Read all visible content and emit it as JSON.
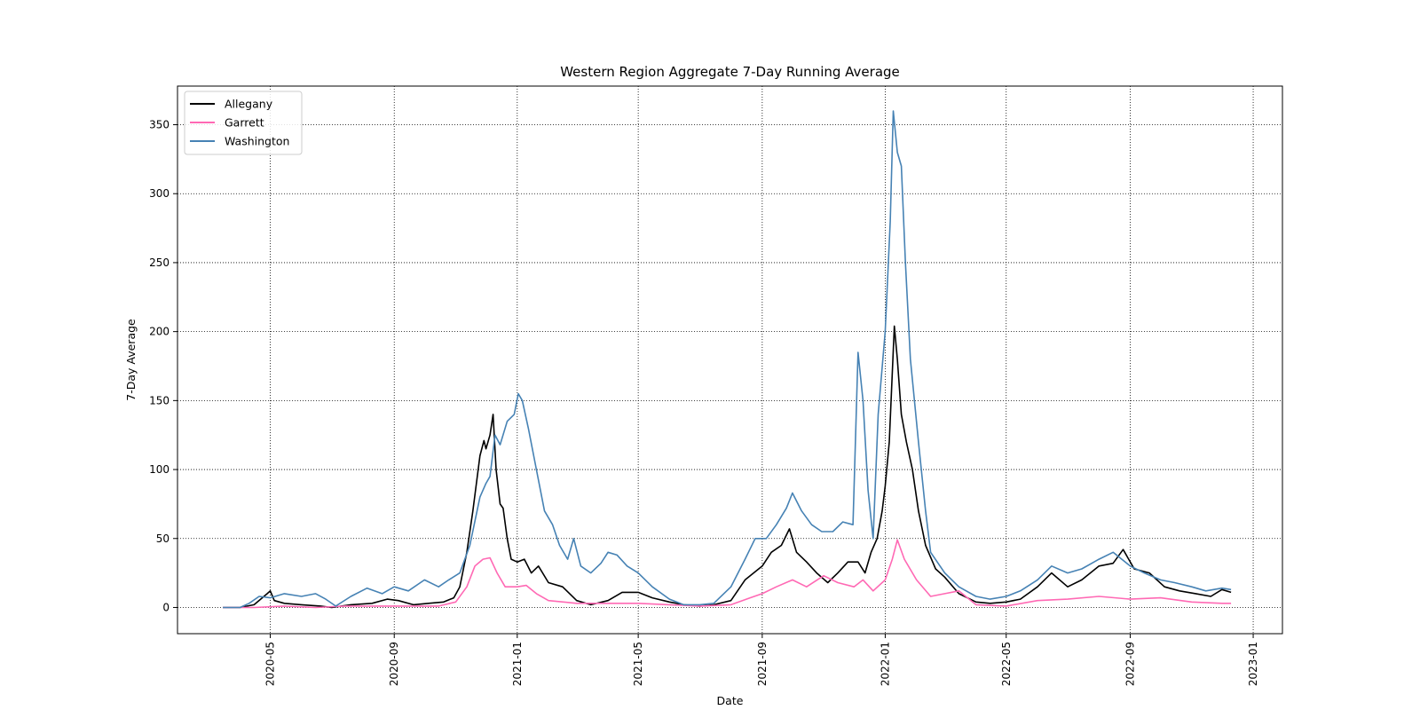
{
  "chart_data": {
    "type": "line",
    "title": "Western Region Aggregate 7-Day Running Average",
    "xlabel": "Date",
    "ylabel": "7-Day Average",
    "xlim": [
      "2020-01-30",
      "2023-01-30"
    ],
    "ylim": [
      -19,
      378
    ],
    "x_ticks": [
      "2020-05",
      "2020-09",
      "2021-01",
      "2021-05",
      "2021-09",
      "2022-01",
      "2022-05",
      "2022-09",
      "2023-01"
    ],
    "y_ticks": [
      0,
      50,
      100,
      150,
      200,
      250,
      300,
      350
    ],
    "grid": true,
    "grid_style": "dotted",
    "legend_position": "top-left",
    "series": [
      {
        "name": "Allegany",
        "color": "#000000",
        "points": [
          [
            "2020-03-15",
            0
          ],
          [
            "2020-04-01",
            0
          ],
          [
            "2020-04-15",
            2
          ],
          [
            "2020-04-28",
            10
          ],
          [
            "2020-05-01",
            12
          ],
          [
            "2020-05-05",
            5
          ],
          [
            "2020-05-15",
            3
          ],
          [
            "2020-06-01",
            2
          ],
          [
            "2020-06-20",
            1
          ],
          [
            "2020-07-01",
            0
          ],
          [
            "2020-07-20",
            2
          ],
          [
            "2020-08-10",
            3
          ],
          [
            "2020-08-25",
            6
          ],
          [
            "2020-09-05",
            5
          ],
          [
            "2020-09-20",
            2
          ],
          [
            "2020-10-05",
            3
          ],
          [
            "2020-10-20",
            4
          ],
          [
            "2020-10-30",
            7
          ],
          [
            "2020-11-05",
            15
          ],
          [
            "2020-11-12",
            40
          ],
          [
            "2020-11-18",
            70
          ],
          [
            "2020-11-25",
            110
          ],
          [
            "2020-11-29",
            121
          ],
          [
            "2020-12-01",
            115
          ],
          [
            "2020-12-05",
            125
          ],
          [
            "2020-12-08",
            140
          ],
          [
            "2020-12-11",
            100
          ],
          [
            "2020-12-15",
            75
          ],
          [
            "2020-12-18",
            72
          ],
          [
            "2020-12-22",
            50
          ],
          [
            "2020-12-26",
            35
          ],
          [
            "2021-01-01",
            33
          ],
          [
            "2021-01-08",
            35
          ],
          [
            "2021-01-15",
            25
          ],
          [
            "2021-01-22",
            30
          ],
          [
            "2021-02-01",
            18
          ],
          [
            "2021-02-15",
            15
          ],
          [
            "2021-03-01",
            5
          ],
          [
            "2021-03-15",
            2
          ],
          [
            "2021-04-01",
            5
          ],
          [
            "2021-04-15",
            11
          ],
          [
            "2021-05-01",
            11
          ],
          [
            "2021-05-15",
            7
          ],
          [
            "2021-06-01",
            4
          ],
          [
            "2021-06-15",
            2
          ],
          [
            "2021-07-01",
            1
          ],
          [
            "2021-07-15",
            2
          ],
          [
            "2021-08-01",
            5
          ],
          [
            "2021-08-15",
            20
          ],
          [
            "2021-09-01",
            30
          ],
          [
            "2021-09-10",
            40
          ],
          [
            "2021-09-20",
            45
          ],
          [
            "2021-09-28",
            57
          ],
          [
            "2021-10-05",
            40
          ],
          [
            "2021-10-15",
            33
          ],
          [
            "2021-10-25",
            25
          ],
          [
            "2021-11-05",
            18
          ],
          [
            "2021-11-15",
            25
          ],
          [
            "2021-11-25",
            33
          ],
          [
            "2021-12-05",
            33
          ],
          [
            "2021-12-12",
            25
          ],
          [
            "2021-12-18",
            40
          ],
          [
            "2021-12-24",
            50
          ],
          [
            "2021-12-29",
            70
          ],
          [
            "2022-01-01",
            88
          ],
          [
            "2022-01-05",
            120
          ],
          [
            "2022-01-10",
            204
          ],
          [
            "2022-01-13",
            180
          ],
          [
            "2022-01-17",
            140
          ],
          [
            "2022-01-22",
            120
          ],
          [
            "2022-01-28",
            100
          ],
          [
            "2022-02-03",
            70
          ],
          [
            "2022-02-10",
            45
          ],
          [
            "2022-02-20",
            28
          ],
          [
            "2022-03-01",
            22
          ],
          [
            "2022-03-15",
            10
          ],
          [
            "2022-04-01",
            4
          ],
          [
            "2022-04-15",
            3
          ],
          [
            "2022-05-01",
            4
          ],
          [
            "2022-05-15",
            6
          ],
          [
            "2022-06-01",
            15
          ],
          [
            "2022-06-15",
            25
          ],
          [
            "2022-07-01",
            15
          ],
          [
            "2022-07-15",
            20
          ],
          [
            "2022-08-01",
            30
          ],
          [
            "2022-08-15",
            32
          ],
          [
            "2022-08-25",
            42
          ],
          [
            "2022-09-05",
            28
          ],
          [
            "2022-09-20",
            25
          ],
          [
            "2022-10-05",
            15
          ],
          [
            "2022-10-20",
            12
          ],
          [
            "2022-11-05",
            10
          ],
          [
            "2022-11-20",
            8
          ],
          [
            "2022-12-01",
            13
          ],
          [
            "2022-12-10",
            11
          ]
        ]
      },
      {
        "name": "Garrett",
        "color": "#ff69b4",
        "points": [
          [
            "2020-03-15",
            0
          ],
          [
            "2020-04-15",
            0
          ],
          [
            "2020-05-15",
            1
          ],
          [
            "2020-06-15",
            0
          ],
          [
            "2020-07-15",
            1
          ],
          [
            "2020-08-15",
            1
          ],
          [
            "2020-09-15",
            1
          ],
          [
            "2020-10-15",
            1
          ],
          [
            "2020-11-01",
            4
          ],
          [
            "2020-11-12",
            15
          ],
          [
            "2020-11-20",
            30
          ],
          [
            "2020-11-28",
            35
          ],
          [
            "2020-12-05",
            36
          ],
          [
            "2020-12-12",
            25
          ],
          [
            "2020-12-20",
            15
          ],
          [
            "2021-01-01",
            15
          ],
          [
            "2021-01-10",
            16
          ],
          [
            "2021-01-20",
            10
          ],
          [
            "2021-02-01",
            5
          ],
          [
            "2021-03-01",
            3
          ],
          [
            "2021-04-01",
            3
          ],
          [
            "2021-05-01",
            3
          ],
          [
            "2021-06-01",
            2
          ],
          [
            "2021-07-01",
            1
          ],
          [
            "2021-08-01",
            2
          ],
          [
            "2021-08-20",
            7
          ],
          [
            "2021-09-01",
            10
          ],
          [
            "2021-09-15",
            15
          ],
          [
            "2021-10-01",
            20
          ],
          [
            "2021-10-15",
            15
          ],
          [
            "2021-11-01",
            23
          ],
          [
            "2021-11-15",
            18
          ],
          [
            "2021-12-01",
            15
          ],
          [
            "2021-12-10",
            20
          ],
          [
            "2021-12-20",
            12
          ],
          [
            "2022-01-01",
            20
          ],
          [
            "2022-01-08",
            35
          ],
          [
            "2022-01-13",
            49
          ],
          [
            "2022-01-20",
            35
          ],
          [
            "2022-02-01",
            20
          ],
          [
            "2022-02-15",
            8
          ],
          [
            "2022-03-01",
            10
          ],
          [
            "2022-03-15",
            12
          ],
          [
            "2022-04-01",
            2
          ],
          [
            "2022-05-01",
            1
          ],
          [
            "2022-06-01",
            5
          ],
          [
            "2022-07-01",
            6
          ],
          [
            "2022-08-01",
            8
          ],
          [
            "2022-09-01",
            6
          ],
          [
            "2022-10-01",
            7
          ],
          [
            "2022-11-01",
            4
          ],
          [
            "2022-12-01",
            3
          ],
          [
            "2022-12-10",
            3
          ]
        ]
      },
      {
        "name": "Washington",
        "color": "#4682b4",
        "points": [
          [
            "2020-03-15",
            0
          ],
          [
            "2020-04-01",
            0
          ],
          [
            "2020-04-10",
            3
          ],
          [
            "2020-04-20",
            8
          ],
          [
            "2020-05-01",
            7
          ],
          [
            "2020-05-15",
            10
          ],
          [
            "2020-06-01",
            8
          ],
          [
            "2020-06-15",
            10
          ],
          [
            "2020-06-25",
            6
          ],
          [
            "2020-07-05",
            1
          ],
          [
            "2020-07-20",
            8
          ],
          [
            "2020-08-05",
            14
          ],
          [
            "2020-08-20",
            10
          ],
          [
            "2020-09-01",
            15
          ],
          [
            "2020-09-15",
            12
          ],
          [
            "2020-10-01",
            20
          ],
          [
            "2020-10-15",
            15
          ],
          [
            "2020-10-25",
            20
          ],
          [
            "2020-11-05",
            25
          ],
          [
            "2020-11-15",
            45
          ],
          [
            "2020-11-25",
            80
          ],
          [
            "2020-12-01",
            90
          ],
          [
            "2020-12-05",
            95
          ],
          [
            "2020-12-10",
            125
          ],
          [
            "2020-12-15",
            118
          ],
          [
            "2020-12-22",
            135
          ],
          [
            "2020-12-29",
            140
          ],
          [
            "2021-01-02",
            155
          ],
          [
            "2021-01-06",
            150
          ],
          [
            "2021-01-12",
            130
          ],
          [
            "2021-01-20",
            100
          ],
          [
            "2021-01-28",
            70
          ],
          [
            "2021-02-05",
            60
          ],
          [
            "2021-02-12",
            45
          ],
          [
            "2021-02-20",
            35
          ],
          [
            "2021-02-26",
            50
          ],
          [
            "2021-03-05",
            30
          ],
          [
            "2021-03-15",
            25
          ],
          [
            "2021-03-25",
            32
          ],
          [
            "2021-04-01",
            40
          ],
          [
            "2021-04-10",
            38
          ],
          [
            "2021-04-20",
            30
          ],
          [
            "2021-05-01",
            25
          ],
          [
            "2021-05-15",
            15
          ],
          [
            "2021-06-01",
            6
          ],
          [
            "2021-06-15",
            2
          ],
          [
            "2021-07-01",
            2
          ],
          [
            "2021-07-15",
            3
          ],
          [
            "2021-08-01",
            15
          ],
          [
            "2021-08-15",
            35
          ],
          [
            "2021-08-25",
            50
          ],
          [
            "2021-09-05",
            50
          ],
          [
            "2021-09-15",
            60
          ],
          [
            "2021-09-25",
            72
          ],
          [
            "2021-10-01",
            83
          ],
          [
            "2021-10-10",
            70
          ],
          [
            "2021-10-20",
            60
          ],
          [
            "2021-10-30",
            55
          ],
          [
            "2021-11-10",
            55
          ],
          [
            "2021-11-20",
            62
          ],
          [
            "2021-11-30",
            60
          ],
          [
            "2021-12-05",
            185
          ],
          [
            "2021-12-10",
            150
          ],
          [
            "2021-12-15",
            85
          ],
          [
            "2021-12-20",
            50
          ],
          [
            "2021-12-25",
            140
          ],
          [
            "2022-01-01",
            200
          ],
          [
            "2022-01-06",
            280
          ],
          [
            "2022-01-09",
            360
          ],
          [
            "2022-01-13",
            330
          ],
          [
            "2022-01-17",
            320
          ],
          [
            "2022-01-21",
            250
          ],
          [
            "2022-01-26",
            180
          ],
          [
            "2022-02-03",
            120
          ],
          [
            "2022-02-10",
            70
          ],
          [
            "2022-02-15",
            40
          ],
          [
            "2022-03-01",
            25
          ],
          [
            "2022-03-15",
            15
          ],
          [
            "2022-04-01",
            8
          ],
          [
            "2022-04-15",
            6
          ],
          [
            "2022-05-01",
            8
          ],
          [
            "2022-05-15",
            12
          ],
          [
            "2022-06-01",
            20
          ],
          [
            "2022-06-15",
            30
          ],
          [
            "2022-07-01",
            25
          ],
          [
            "2022-07-15",
            28
          ],
          [
            "2022-08-01",
            35
          ],
          [
            "2022-08-15",
            40
          ],
          [
            "2022-09-01",
            30
          ],
          [
            "2022-09-15",
            25
          ],
          [
            "2022-10-01",
            20
          ],
          [
            "2022-10-15",
            18
          ],
          [
            "2022-11-01",
            15
          ],
          [
            "2022-11-15",
            12
          ],
          [
            "2022-12-01",
            14
          ],
          [
            "2022-12-10",
            13
          ]
        ]
      }
    ]
  }
}
